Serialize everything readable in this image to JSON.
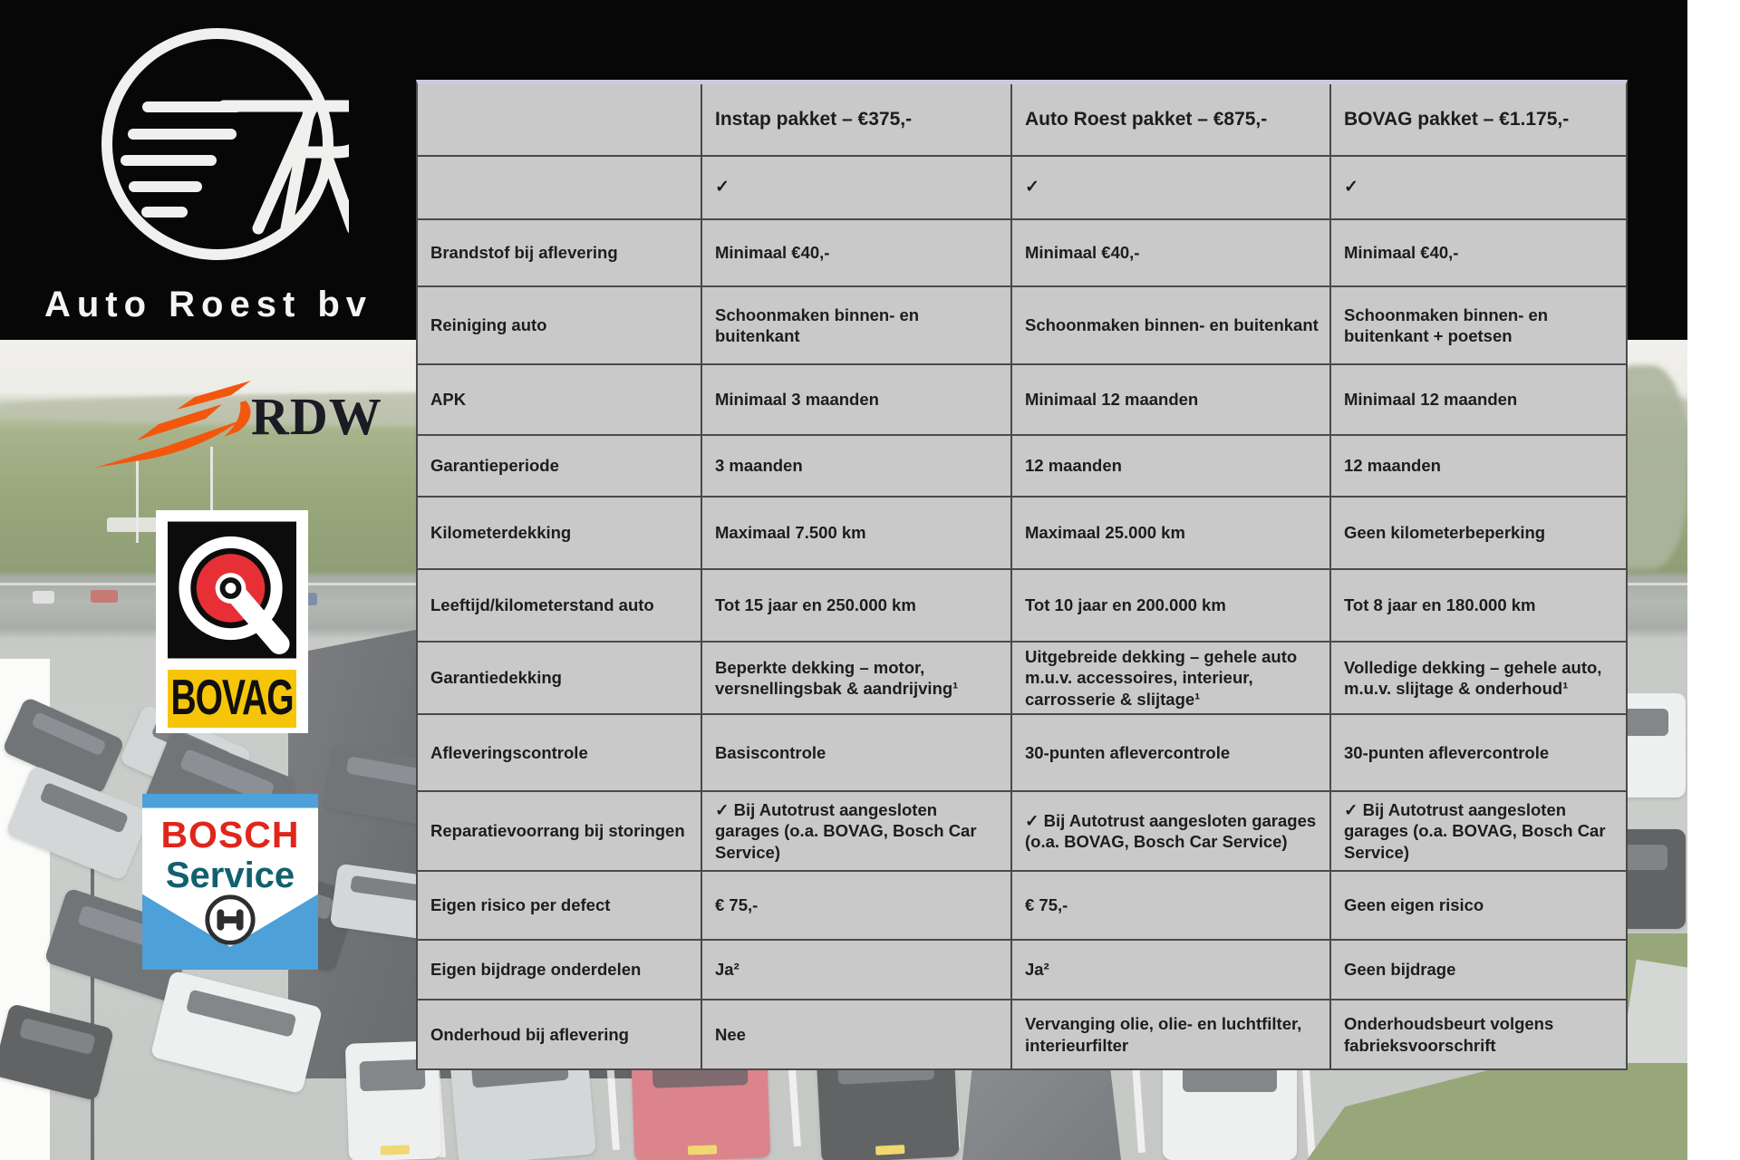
{
  "branding": {
    "company": "Auto Roest bv",
    "building_signage": "Auto Ro"
  },
  "partner_logos": {
    "rdw_text": "RDW",
    "bovag_text": "BOVAG",
    "bosch_title": "BOSCH",
    "bosch_subtitle": "Service"
  },
  "table": {
    "columns": [
      "",
      "Instap pakket – €375,-",
      "Auto Roest pakket – €875,-",
      "BOVAG pakket – €1.175,-"
    ],
    "rows": [
      {
        "label": "",
        "cells": [
          "✓",
          "✓",
          "✓"
        ]
      },
      {
        "label": "Brandstof bij aflevering",
        "cells": [
          "Minimaal €40,-",
          "Minimaal €40,-",
          "Minimaal €40,-"
        ]
      },
      {
        "label": "Reiniging auto",
        "cells": [
          "Schoonmaken binnen- en buitenkant",
          "Schoonmaken binnen- en buitenkant",
          "Schoonmaken binnen- en buitenkant + poetsen"
        ]
      },
      {
        "label": "APK",
        "cells": [
          "Minimaal 3 maanden",
          "Minimaal 12 maanden",
          "Minimaal 12 maanden"
        ]
      },
      {
        "label": "Garantieperiode",
        "cells": [
          "3 maanden",
          "12 maanden",
          "12 maanden"
        ]
      },
      {
        "label": "Kilometerdekking",
        "cells": [
          "Maximaal 7.500 km",
          "Maximaal 25.000 km",
          "Geen kilometerbeperking"
        ]
      },
      {
        "label": "Leeftijd/kilometerstand auto",
        "cells": [
          "Tot 15 jaar en 250.000 km",
          "Tot 10 jaar en 200.000 km",
          "Tot 8 jaar en 180.000 km"
        ]
      },
      {
        "label": "Garantiedekking",
        "cells": [
          "Beperkte dekking – motor, versnellingsbak & aandrijving¹",
          "Uitgebreide dekking – gehele auto m.u.v. accessoires, interieur, carrosserie & slijtage¹",
          "Volledige dekking – gehele auto, m.u.v. slijtage & onderhoud¹"
        ]
      },
      {
        "label": "Afleveringscontrole",
        "cells": [
          "Basiscontrole",
          "30-punten aflevercontrole",
          "30-punten aflevercontrole"
        ]
      },
      {
        "label": "Reparatievoorrang bij storingen",
        "cells": [
          "✓ Bij Autotrust aangesloten garages (o.a. BOVAG, Bosch Car Service)",
          "✓ Bij Autotrust aangesloten garages (o.a. BOVAG, Bosch Car Service)",
          "✓ Bij Autotrust aangesloten garages (o.a. BOVAG, Bosch Car Service)"
        ]
      },
      {
        "label": "Eigen risico per defect",
        "cells": [
          "€ 75,-",
          "€ 75,-",
          "Geen eigen risico"
        ]
      },
      {
        "label": "Eigen bijdrage onderdelen",
        "cells": [
          "Ja²",
          "Ja²",
          "Geen bijdrage"
        ]
      },
      {
        "label": "Onderhoud bij aflevering",
        "cells": [
          "Nee",
          "Vervanging olie, olie- en luchtfilter, interieurfilter",
          "Onderhoudsbeurt volgens fabrieksvoorschrift"
        ]
      }
    ]
  },
  "colors": {
    "band_black": "#070708",
    "table_gray": "#C9C9C9",
    "table_border": "#4A4A4A",
    "table_top_line": "#CFC8DF",
    "rdw_orange": "#F2570D",
    "bovag_yellow": "#F6C50A",
    "bovag_red": "#E63036",
    "bosch_blue": "#4DA0D8",
    "bosch_red": "#E0251B",
    "bosch_teal": "#11606E"
  }
}
